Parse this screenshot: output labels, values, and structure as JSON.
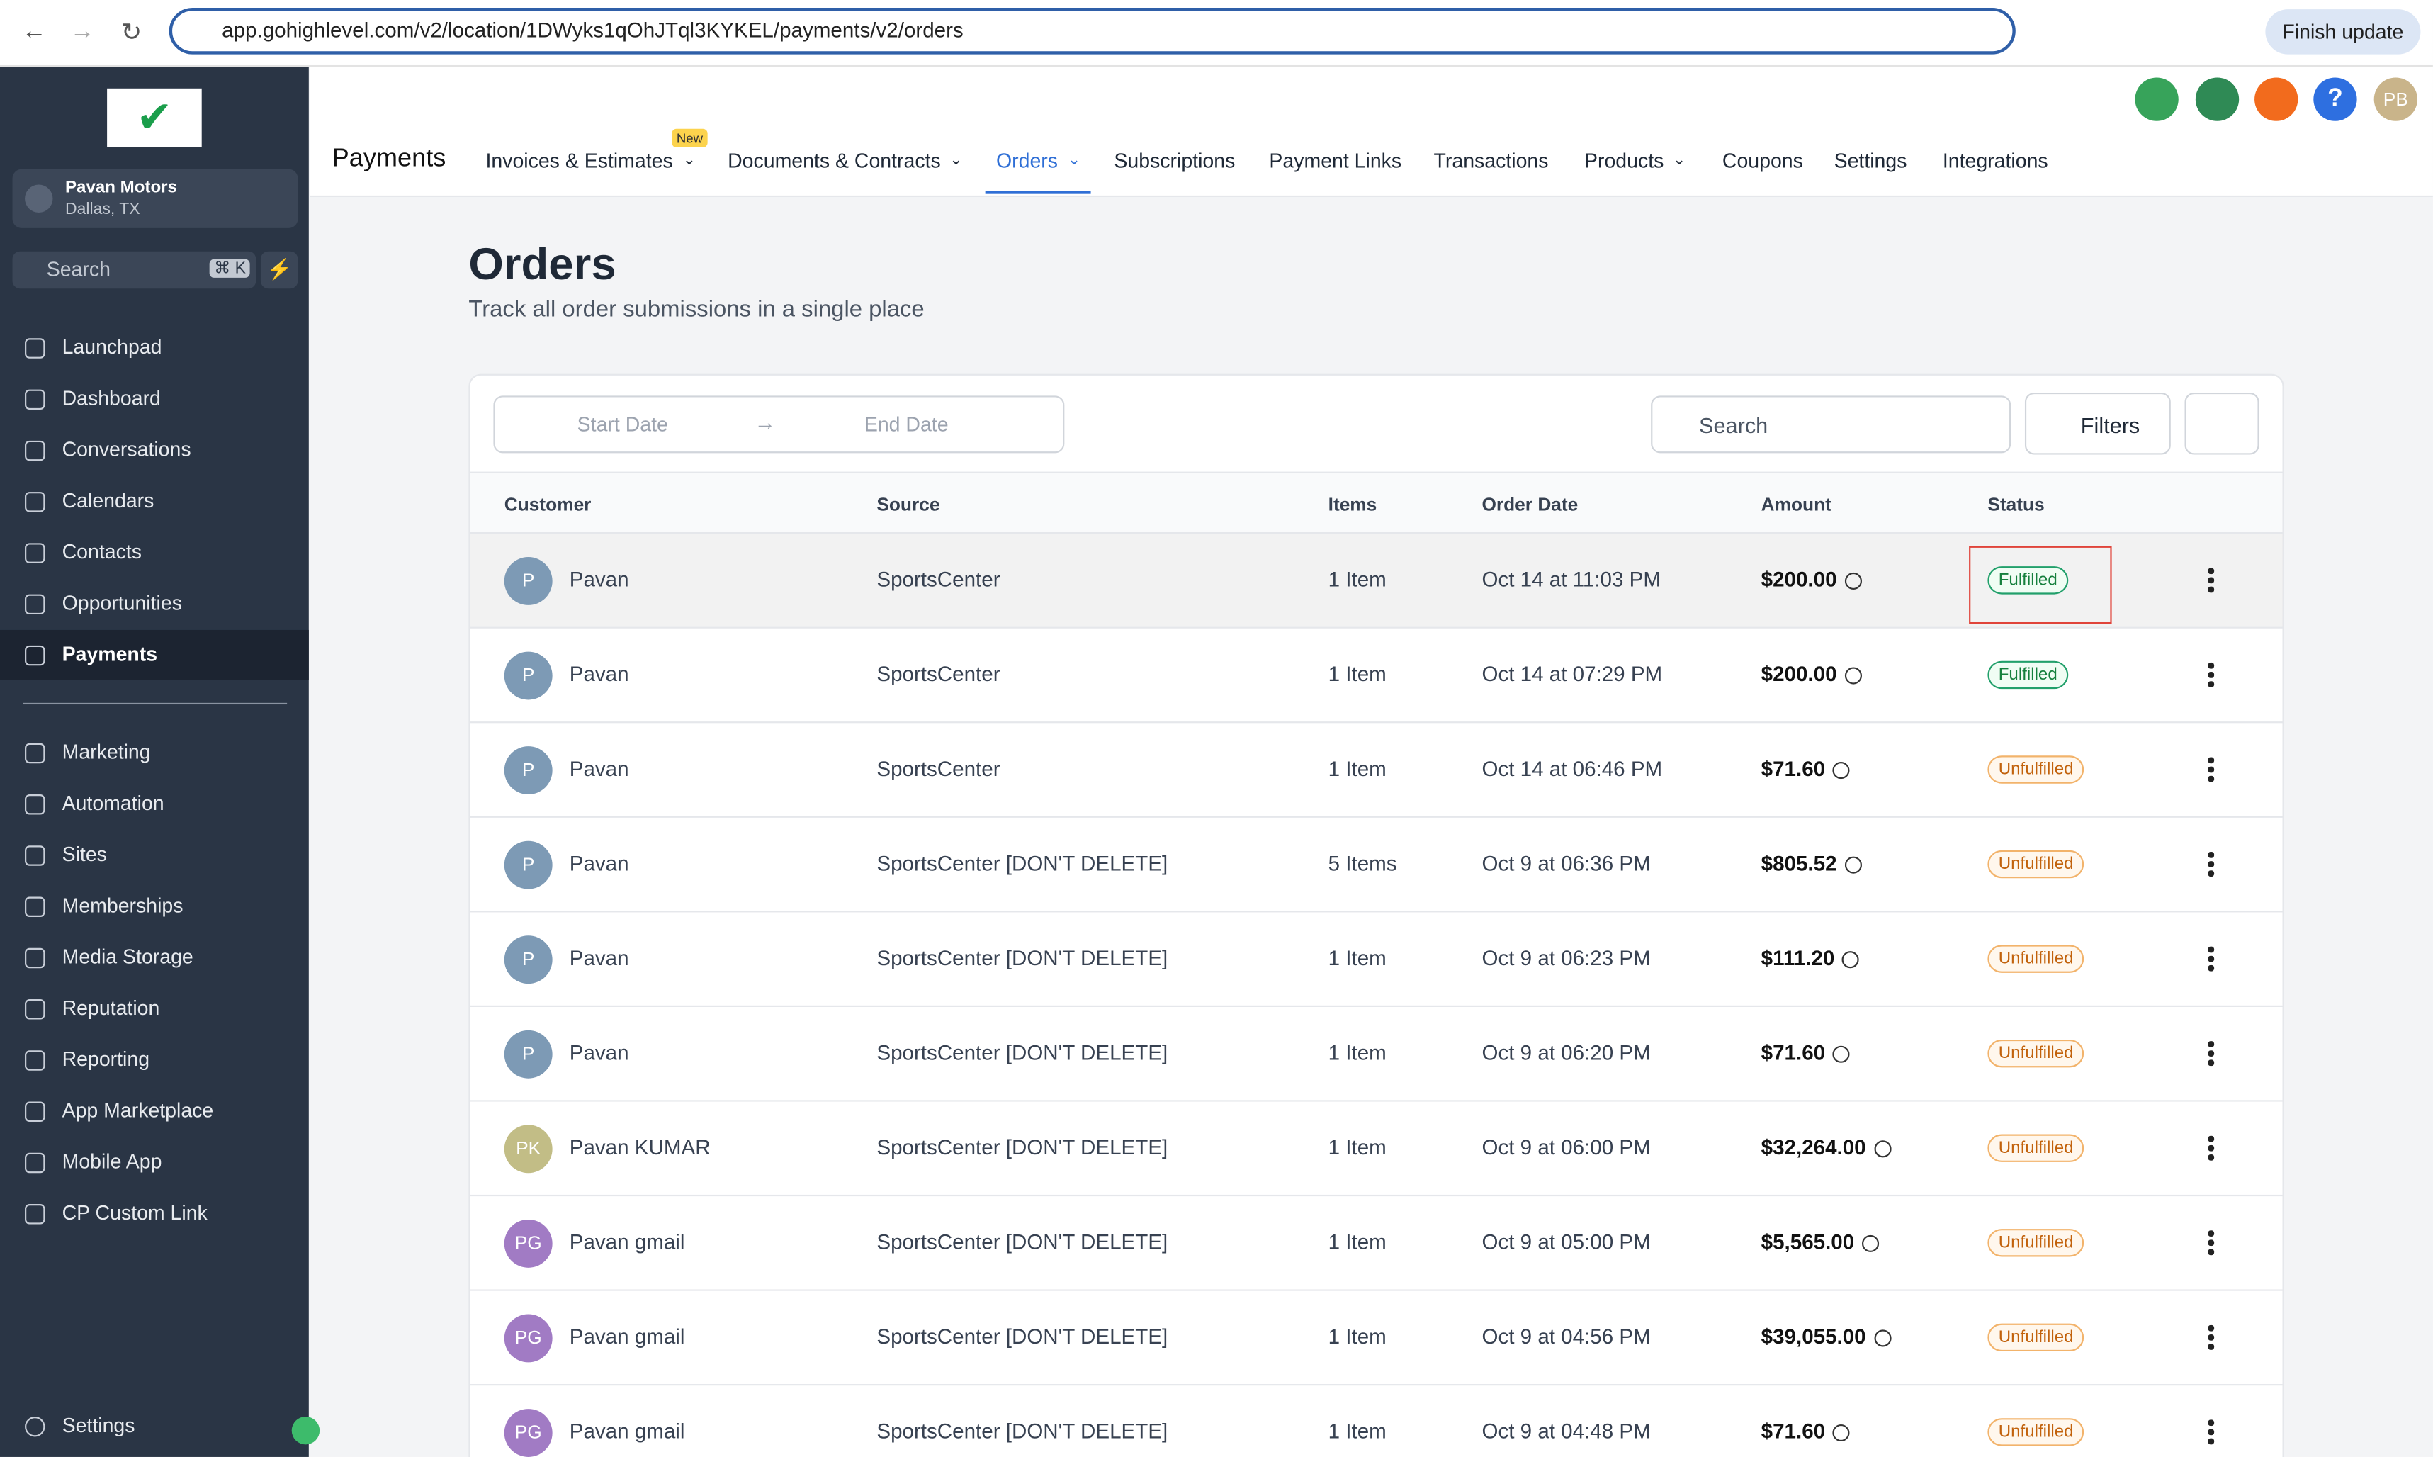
{
  "browser": {
    "url": "app.gohighlevel.com/v2/location/1DWyks1qOhJTql3KYKEL/payments/v2/orders",
    "update_button": "Finish update"
  },
  "sidebar": {
    "account_name": "Pavan Motors",
    "account_location": "Dallas, TX",
    "search_placeholder": "Search",
    "search_shortcut": "⌘ K",
    "nav_primary": [
      "Launchpad",
      "Dashboard",
      "Conversations",
      "Calendars",
      "Contacts",
      "Opportunities",
      "Payments"
    ],
    "nav_secondary": [
      "Marketing",
      "Automation",
      "Sites",
      "Memberships",
      "Media Storage",
      "Reputation",
      "Reporting",
      "App Marketplace",
      "Mobile App",
      "CP Custom Link"
    ],
    "settings": "Settings"
  },
  "header": {
    "title": "Payments",
    "avatar": "PB",
    "tabs": [
      {
        "label": "Invoices & Estimates",
        "badge": "New"
      },
      {
        "label": "Documents & Contracts"
      },
      {
        "label": "Orders"
      },
      {
        "label": "Subscriptions"
      },
      {
        "label": "Payment Links"
      },
      {
        "label": "Transactions"
      },
      {
        "label": "Products"
      },
      {
        "label": "Coupons"
      },
      {
        "label": "Settings"
      },
      {
        "label": "Integrations"
      }
    ]
  },
  "page": {
    "title": "Orders",
    "subtitle": "Track all order submissions in a single place",
    "start_date": "Start Date",
    "end_date": "End Date",
    "search": "Search",
    "filters": "Filters"
  },
  "table": {
    "columns": [
      "Customer",
      "Source",
      "Items",
      "Order Date",
      "Amount",
      "Status"
    ],
    "rows": [
      {
        "initials": "P",
        "customer": "Pavan",
        "source": "SportsCenter",
        "items": "1 Item",
        "order_date": "Oct 14 at 11:03 PM",
        "amount": "$200.00",
        "status": "Fulfilled"
      },
      {
        "initials": "P",
        "customer": "Pavan",
        "source": "SportsCenter",
        "items": "1 Item",
        "order_date": "Oct 14 at 07:29 PM",
        "amount": "$200.00",
        "status": "Fulfilled"
      },
      {
        "initials": "P",
        "customer": "Pavan",
        "source": "SportsCenter",
        "items": "1 Item",
        "order_date": "Oct 14 at 06:46 PM",
        "amount": "$71.60",
        "status": "Unfulfilled"
      },
      {
        "initials": "P",
        "customer": "Pavan",
        "source": "SportsCenter [DON'T DELETE]",
        "items": "5 Items",
        "order_date": "Oct 9 at 06:36 PM",
        "amount": "$805.52",
        "status": "Unfulfilled"
      },
      {
        "initials": "P",
        "customer": "Pavan",
        "source": "SportsCenter [DON'T DELETE]",
        "items": "1 Item",
        "order_date": "Oct 9 at 06:23 PM",
        "amount": "$111.20",
        "status": "Unfulfilled"
      },
      {
        "initials": "P",
        "customer": "Pavan",
        "source": "SportsCenter [DON'T DELETE]",
        "items": "1 Item",
        "order_date": "Oct 9 at 06:20 PM",
        "amount": "$71.60",
        "status": "Unfulfilled"
      },
      {
        "initials": "PK",
        "customer": "Pavan KUMAR",
        "source": "SportsCenter [DON'T DELETE]",
        "items": "1 Item",
        "order_date": "Oct 9 at 06:00 PM",
        "amount": "$32,264.00",
        "status": "Unfulfilled"
      },
      {
        "initials": "PG",
        "customer": "Pavan gmail",
        "source": "SportsCenter [DON'T DELETE]",
        "items": "1 Item",
        "order_date": "Oct 9 at 05:00 PM",
        "amount": "$5,565.00",
        "status": "Unfulfilled"
      },
      {
        "initials": "PG",
        "customer": "Pavan gmail",
        "source": "SportsCenter [DON'T DELETE]",
        "items": "1 Item",
        "order_date": "Oct 9 at 04:56 PM",
        "amount": "$39,055.00",
        "status": "Unfulfilled"
      },
      {
        "initials": "PG",
        "customer": "Pavan gmail",
        "source": "SportsCenter [DON'T DELETE]",
        "items": "1 Item",
        "order_date": "Oct 9 at 04:48 PM",
        "amount": "$71.60",
        "status": "Unfulfilled"
      }
    ]
  }
}
